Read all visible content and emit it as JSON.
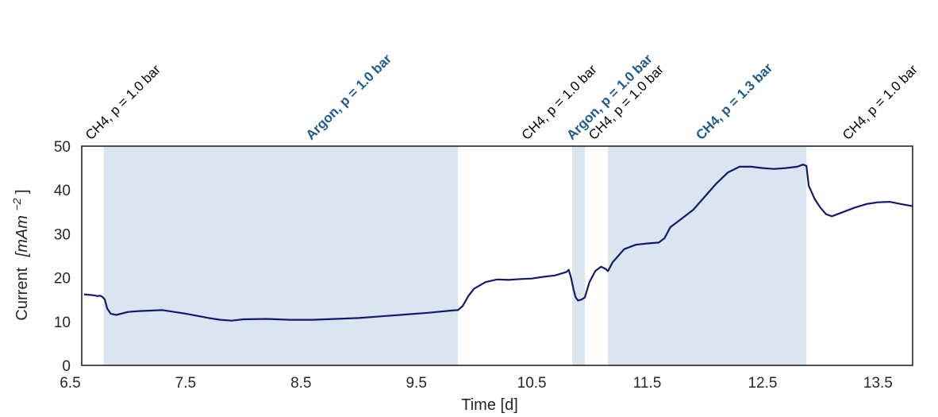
{
  "chart_data": {
    "type": "line",
    "title": "",
    "xlabel": "Time [d]",
    "ylabel_main": "Current",
    "ylabel_unit": "[mAm",
    "ylabel_sup": "−2",
    "ylabel_close": "]",
    "xlim": [
      6.6,
      13.8
    ],
    "ylim": [
      0,
      50
    ],
    "xticks": [
      6.5,
      7.5,
      8.5,
      9.5,
      10.5,
      11.5,
      12.5,
      13.5
    ],
    "xtick_labels": [
      "6.5",
      "7.5",
      "8.5",
      "9.5",
      "10.5",
      "11.5",
      "12.5",
      "13.5"
    ],
    "yticks": [
      0,
      10,
      20,
      30,
      40,
      50
    ],
    "ytick_labels": [
      "0",
      "10",
      "20",
      "30",
      "40",
      "50"
    ],
    "grid": false,
    "colors": {
      "line": "#141a6b",
      "shade": "#dae5f0",
      "highlight_text": "#1f5b8c",
      "text": "#000000"
    },
    "shaded_regions": [
      {
        "x0": 6.79,
        "x1": 9.86
      },
      {
        "x0": 10.85,
        "x1": 10.96
      },
      {
        "x0": 11.16,
        "x1": 12.88
      }
    ],
    "phase_labels": [
      {
        "x": 6.68,
        "text": "CH4, p = 1.0 bar",
        "highlight": false
      },
      {
        "x": 8.59,
        "text": "Argon, p = 1.0 bar",
        "highlight": true
      },
      {
        "x": 10.46,
        "text": "CH4, p = 1.0 bar",
        "highlight": false
      },
      {
        "x": 10.85,
        "text": "Argon, p = 1.0 bar",
        "highlight": true
      },
      {
        "x": 11.04,
        "text": "CH4, p = 1.0 bar",
        "highlight": false
      },
      {
        "x": 11.97,
        "text": "CH4, p = 1.3 bar",
        "highlight": true
      },
      {
        "x": 13.24,
        "text": "CH4, p = 1.0 bar",
        "highlight": false
      }
    ],
    "series": [
      {
        "x": [
          6.62,
          6.7,
          6.74,
          6.76,
          6.78,
          6.8,
          6.82,
          6.85,
          6.9,
          7.0,
          7.1,
          7.2,
          7.3,
          7.4,
          7.5,
          7.6,
          7.7,
          7.8,
          7.9,
          8.0,
          8.2,
          8.4,
          8.6,
          8.8,
          9.0,
          9.2,
          9.4,
          9.6,
          9.8,
          9.86,
          9.9,
          9.95,
          10.0,
          10.1,
          10.2,
          10.3,
          10.4,
          10.5,
          10.6,
          10.7,
          10.8,
          10.82,
          10.84,
          10.86,
          10.88,
          10.9,
          10.93,
          10.96,
          11.0,
          11.05,
          11.1,
          11.14,
          11.16,
          11.2,
          11.25,
          11.3,
          11.4,
          11.5,
          11.6,
          11.65,
          11.7,
          11.8,
          11.9,
          12.0,
          12.1,
          12.2,
          12.3,
          12.4,
          12.5,
          12.6,
          12.7,
          12.8,
          12.85,
          12.88,
          12.9,
          12.95,
          13.0,
          13.05,
          13.1,
          13.2,
          13.3,
          13.4,
          13.5,
          13.6,
          13.7,
          13.8
        ],
        "y": [
          16.2,
          16.0,
          15.8,
          15.9,
          15.6,
          15.0,
          13.0,
          11.8,
          11.5,
          12.2,
          12.4,
          12.5,
          12.6,
          12.2,
          11.8,
          11.3,
          10.8,
          10.4,
          10.2,
          10.5,
          10.6,
          10.4,
          10.4,
          10.6,
          10.8,
          11.2,
          11.6,
          12.0,
          12.5,
          12.6,
          13.5,
          15.8,
          17.5,
          19.0,
          19.6,
          19.5,
          19.7,
          19.8,
          20.2,
          20.5,
          21.3,
          21.8,
          20.0,
          17.5,
          15.5,
          14.8,
          15.0,
          15.5,
          19.0,
          21.5,
          22.5,
          22.0,
          21.5,
          23.5,
          25.0,
          26.5,
          27.5,
          27.8,
          28.0,
          29.0,
          31.5,
          33.5,
          35.5,
          38.5,
          41.5,
          44.0,
          45.3,
          45.3,
          45.0,
          44.8,
          45.0,
          45.3,
          45.8,
          45.5,
          41.0,
          38.0,
          36.0,
          34.5,
          34.0,
          35.0,
          36.0,
          36.8,
          37.2,
          37.3,
          36.8,
          36.3
        ]
      }
    ]
  }
}
